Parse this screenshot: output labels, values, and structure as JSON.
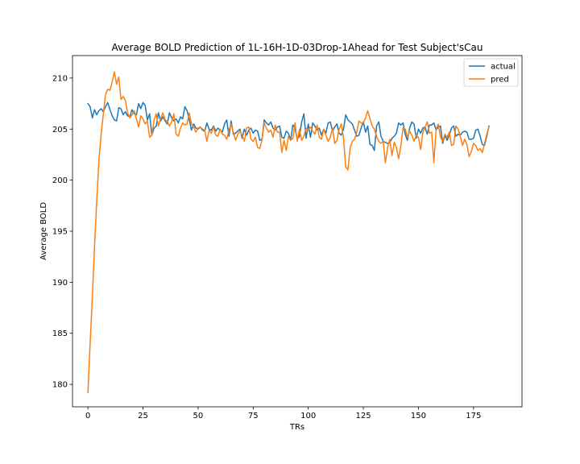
{
  "chart_data": {
    "type": "line",
    "title": "Average BOLD Prediction of 1L-16H-1D-03Drop-1Ahead for Test Subject'sCau",
    "xlabel": "TRs",
    "ylabel": "Average BOLD",
    "xlim": [
      -7,
      197
    ],
    "ylim": [
      177.8,
      212.2
    ],
    "xticks": [
      0,
      25,
      50,
      75,
      100,
      125,
      150,
      175
    ],
    "yticks": [
      180,
      185,
      190,
      195,
      200,
      205,
      210
    ],
    "grid": false,
    "legend_position": "top-right",
    "series": [
      {
        "name": "actual",
        "color": "#1f77b4",
        "x_start": 0,
        "values": [
          207.5,
          207.2,
          206.1,
          206.9,
          206.4,
          206.8,
          207.0,
          206.7,
          207.2,
          207.6,
          206.9,
          206.3,
          205.9,
          205.8,
          207.1,
          207.0,
          206.4,
          206.7,
          206.3,
          206.2,
          206.9,
          206.5,
          206.4,
          207.5,
          207.0,
          207.6,
          207.3,
          205.9,
          206.5,
          204.4,
          205.1,
          205.3,
          206.6,
          205.8,
          206.2,
          205.8,
          205.5,
          206.6,
          206.1,
          205.8,
          206.0,
          205.6,
          206.2,
          206.0,
          207.2,
          206.8,
          205.9,
          204.9,
          205.5,
          205.1,
          205.0,
          205.2,
          204.9,
          204.8,
          205.6,
          205.0,
          204.9,
          205.3,
          204.8,
          205.1,
          204.9,
          204.7,
          205.5,
          205.9,
          204.3,
          205.8,
          204.5,
          204.6,
          204.8,
          205.0,
          204.1,
          205.0,
          204.4,
          204.9,
          205.1,
          204.6,
          204.9,
          204.8,
          203.9,
          204.0,
          205.9,
          205.6,
          205.4,
          205.7,
          205.1,
          204.9,
          205.2,
          205.3,
          204.2,
          204.1,
          204.8,
          204.6,
          203.9,
          205.4,
          205.1,
          204.0,
          204.3,
          205.7,
          206.5,
          204.1,
          205.5,
          204.2,
          205.6,
          205.3,
          204.9,
          205.1,
          204.4,
          205.0,
          204.6,
          205.6,
          205.7,
          204.8,
          205.2,
          205.5,
          204.6,
          204.4,
          205.0,
          206.4,
          205.9,
          205.7,
          205.5,
          204.9,
          204.3,
          204.4,
          205.1,
          205.7,
          204.7,
          205.3,
          203.5,
          203.4,
          202.9,
          205.3,
          205.7,
          204.3,
          203.8,
          203.7,
          203.6,
          203.7,
          204.1,
          204.3,
          204.6,
          205.6,
          205.4,
          205.6,
          204.5,
          203.9,
          205.1,
          205.7,
          205.5,
          204.1,
          205.0,
          204.6,
          205.1,
          205.2,
          204.5,
          205.4,
          205.4,
          205.6,
          204.9,
          205.2,
          205.3,
          203.6,
          204.4,
          203.9,
          204.4,
          205.1,
          205.3,
          204.3,
          204.5,
          204.4,
          204.7,
          204.8,
          204.7,
          204.0,
          204.0,
          204.1,
          204.9,
          205.0,
          204.3,
          203.5,
          203.4,
          204.3,
          205.3
        ]
      },
      {
        "name": "pred",
        "color": "#ff7f0e",
        "x_start": 0,
        "values": [
          179.2,
          184.0,
          188.5,
          193.5,
          198.0,
          202.0,
          204.5,
          206.5,
          208.4,
          208.9,
          208.8,
          209.6,
          210.6,
          209.4,
          210.1,
          207.9,
          208.2,
          207.8,
          206.6,
          206.1,
          206.4,
          206.8,
          206.0,
          205.2,
          206.3,
          206.0,
          205.5,
          205.8,
          204.2,
          204.4,
          205.9,
          206.5,
          205.3,
          206.0,
          206.6,
          205.9,
          205.8,
          205.3,
          205.7,
          206.5,
          204.5,
          204.3,
          205.1,
          205.6,
          205.4,
          205.5,
          206.6,
          205.5,
          205.2,
          204.7,
          205.1,
          205.2,
          205.0,
          204.9,
          203.8,
          204.9,
          204.6,
          205.2,
          204.4,
          204.3,
          205.0,
          204.5,
          204.4,
          204.0,
          204.9,
          205.5,
          204.7,
          203.9,
          204.5,
          204.8,
          204.4,
          203.8,
          205.1,
          205.2,
          204.0,
          203.8,
          204.2,
          203.2,
          203.1,
          203.9,
          205.6,
          205.1,
          204.7,
          204.9,
          204.2,
          205.4,
          204.7,
          204.7,
          202.7,
          203.9,
          202.9,
          204.3,
          203.9,
          204.1,
          205.6,
          203.8,
          205.0,
          203.9,
          204.3,
          205.1,
          204.9,
          205.2,
          204.8,
          204.5,
          205.4,
          204.2,
          204.0,
          205.0,
          204.4,
          203.8,
          204.2,
          205.1,
          203.6,
          203.9,
          205.0,
          205.5,
          204.1,
          201.3,
          201.0,
          203.2,
          203.8,
          204.0,
          204.7,
          205.8,
          205.6,
          205.6,
          206.1,
          206.8,
          206.0,
          205.3,
          205.0,
          204.3,
          203.8,
          203.6,
          203.8,
          201.7,
          203.2,
          204.0,
          202.4,
          203.7,
          203.2,
          202.1,
          203.3,
          205.1,
          205.0,
          204.2,
          204.8,
          204.4,
          203.8,
          204.4,
          204.2,
          203.0,
          204.7,
          205.2,
          205.7,
          204.6,
          204.7,
          201.7,
          205.0,
          205.5,
          204.2,
          203.8,
          204.5,
          204.2,
          204.7,
          203.4,
          203.5,
          205.3,
          205.0,
          204.3,
          203.4,
          204.0,
          203.5,
          202.3,
          202.8,
          203.6,
          203.4,
          202.9,
          203.1,
          202.7,
          203.6,
          204.5,
          205.2
        ]
      }
    ]
  }
}
